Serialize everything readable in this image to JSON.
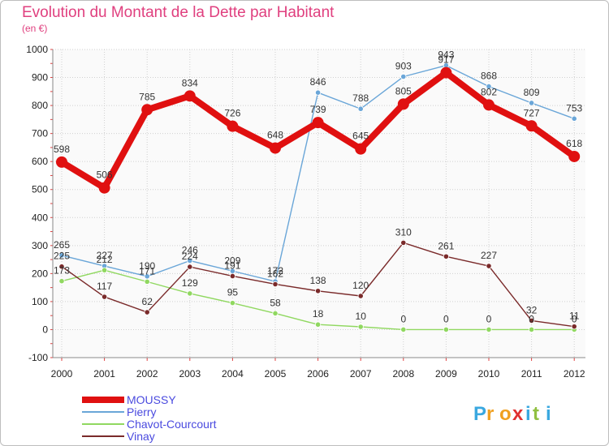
{
  "title": "Evolution du Montant de la Dette par Habitant",
  "subtitle": "(en €)",
  "brand": "Proxiti",
  "chart_data": {
    "type": "line",
    "x": [
      "2000",
      "2001",
      "2002",
      "2003",
      "2004",
      "2005",
      "2006",
      "2007",
      "2008",
      "2009",
      "2010",
      "2011",
      "2012"
    ],
    "ylim": [
      -100,
      1000
    ],
    "y_ticks": [
      -100,
      0,
      100,
      200,
      300,
      400,
      500,
      600,
      700,
      800,
      900,
      1000
    ],
    "grid": true,
    "legend_position": "bottom-left",
    "series": [
      {
        "name": "MOUSSY",
        "color": "#e01010",
        "values": [
          598,
          506,
          785,
          834,
          726,
          648,
          739,
          645,
          805,
          917,
          802,
          727,
          618
        ]
      },
      {
        "name": "Pierry",
        "color": "#6aa6d8",
        "values": [
          265,
          227,
          190,
          246,
          209,
          172,
          846,
          788,
          903,
          943,
          868,
          809,
          753
        ]
      },
      {
        "name": "Chavot-Courcourt",
        "color": "#90d860",
        "values": [
          173,
          212,
          171,
          129,
          95,
          58,
          18,
          10,
          0,
          0,
          0,
          0,
          0
        ]
      },
      {
        "name": "Vinay",
        "color": "#7a2a2a",
        "values": [
          225,
          117,
          62,
          224,
          191,
          162,
          138,
          120,
          310,
          261,
          227,
          32,
          11
        ]
      }
    ],
    "point_labels": [
      [
        "598",
        "506",
        "785",
        "834",
        "726",
        "648",
        "739",
        "645",
        "805",
        "917",
        "802",
        "727",
        "618"
      ],
      [
        "265",
        "227",
        "190",
        "246",
        "209",
        "172",
        "846",
        "788",
        "903",
        "943",
        "868",
        "809",
        "753"
      ],
      [
        "173",
        "212",
        "171",
        "129",
        "95",
        "58",
        "18",
        "10",
        "0",
        "0",
        "0",
        "0",
        "0"
      ],
      [
        "225",
        "117",
        "62",
        "224",
        "191",
        "162",
        "138",
        "120",
        "310",
        "261",
        "227",
        "32",
        "11"
      ]
    ]
  }
}
